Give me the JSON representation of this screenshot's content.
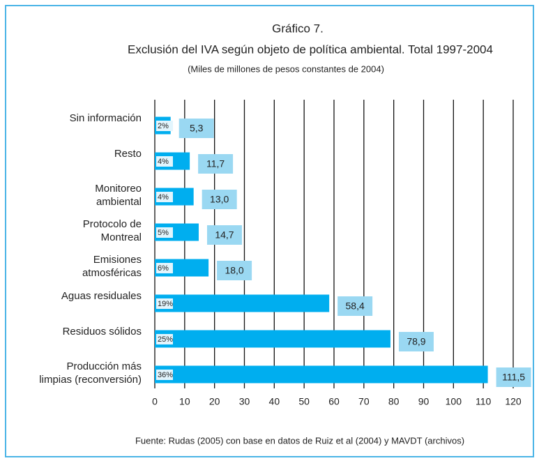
{
  "chart_data": {
    "type": "bar",
    "orientation": "horizontal",
    "title": "Gráfico 7.",
    "subtitle": "Exclusión del IVA según objeto de política ambiental. Total 1997-2004",
    "units": "(Miles de millones de pesos constantes de 2004)",
    "source": "Fuente: Rudas (2005) con base en datos de Ruiz et al (2004) y MAVDT (archivos)",
    "categories": [
      "Sin información",
      "Resto",
      "Monitoreo\nambiental",
      "Protocolo de\nMontreal",
      "Emisiones\natmosféricas",
      "Aguas residuales",
      "Residuos sólidos",
      "Producción más\nlimpias (reconversión)"
    ],
    "values": [
      5.3,
      11.7,
      13.0,
      14.7,
      18.0,
      58.4,
      78.9,
      111.5
    ],
    "value_labels": [
      "5,3",
      "11,7",
      "13,0",
      "14,7",
      "18,0",
      "58,4",
      "78,9",
      "111,5"
    ],
    "shares": [
      2,
      4,
      4,
      5,
      6,
      19,
      25,
      36
    ],
    "share_labels": [
      "2%",
      "4%",
      "4%",
      "5%",
      "6%",
      "19%",
      "25%",
      "36%"
    ],
    "color": "#00aeef",
    "label_color": "#9ad8f2",
    "xlim": [
      0,
      120
    ],
    "xticks": [
      0,
      10,
      20,
      30,
      40,
      50,
      60,
      70,
      80,
      90,
      100,
      110,
      120
    ],
    "grid": true
  }
}
